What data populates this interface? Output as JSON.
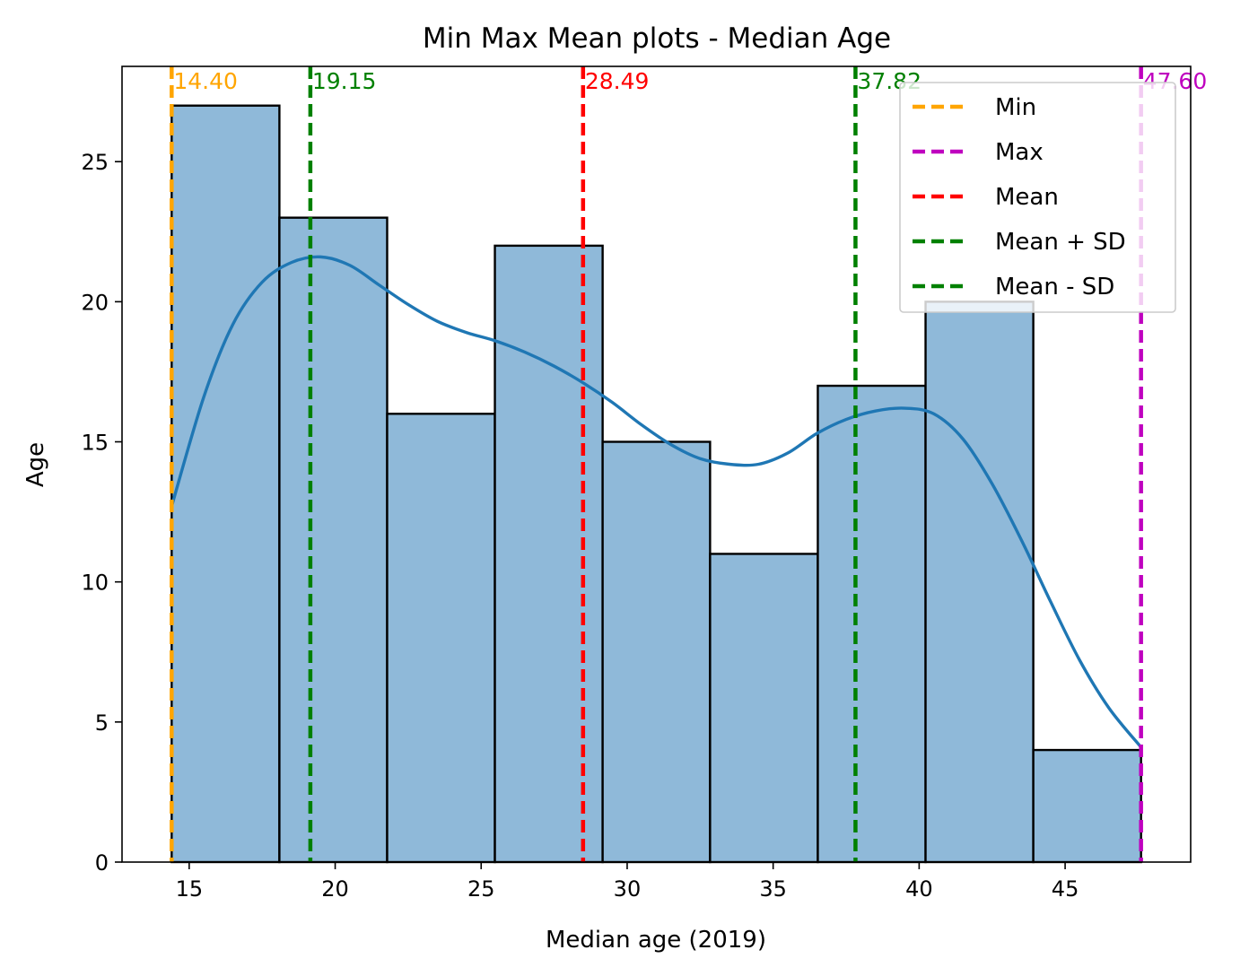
{
  "chart_data": {
    "type": "bar",
    "title": "Min Max Mean plots - Median Age",
    "xlabel": "Median age (2019)",
    "ylabel": "Age",
    "xlim": [
      12.7,
      49.3
    ],
    "ylim": [
      0,
      28.4
    ],
    "xticks": [
      15,
      20,
      25,
      30,
      35,
      40,
      45
    ],
    "yticks": [
      0,
      5,
      10,
      15,
      20,
      25
    ],
    "bins": [
      {
        "x0": 14.4,
        "x1": 18.09,
        "count": 27
      },
      {
        "x0": 18.09,
        "x1": 21.78,
        "count": 23
      },
      {
        "x0": 21.78,
        "x1": 25.47,
        "count": 16
      },
      {
        "x0": 25.47,
        "x1": 29.16,
        "count": 22
      },
      {
        "x0": 29.16,
        "x1": 32.84,
        "count": 15
      },
      {
        "x0": 32.84,
        "x1": 36.53,
        "count": 11
      },
      {
        "x0": 36.53,
        "x1": 40.22,
        "count": 17
      },
      {
        "x0": 40.22,
        "x1": 43.91,
        "count": 20
      },
      {
        "x0": 43.91,
        "x1": 47.6,
        "count": 4
      }
    ],
    "bar_color": "#8fb9d9",
    "kde": {
      "color": "#1f77b4",
      "x": [
        14.4,
        15.5,
        16.5,
        17.5,
        18.5,
        19.5,
        20.5,
        21.5,
        22.5,
        23.5,
        24.5,
        25.5,
        26.5,
        27.5,
        28.5,
        29.5,
        30.5,
        31.5,
        32.5,
        33.5,
        34.5,
        35.5,
        36.5,
        37.5,
        38.5,
        39.5,
        40.5,
        41.5,
        42.5,
        43.5,
        44.5,
        45.5,
        46.5,
        47.6
      ],
      "y": [
        12.7,
        16.6,
        19.2,
        20.7,
        21.4,
        21.6,
        21.3,
        20.6,
        19.9,
        19.3,
        18.9,
        18.6,
        18.2,
        17.7,
        17.1,
        16.4,
        15.6,
        14.9,
        14.4,
        14.2,
        14.2,
        14.6,
        15.3,
        15.8,
        16.1,
        16.2,
        16.0,
        15.1,
        13.5,
        11.5,
        9.3,
        7.2,
        5.5,
        4.1
      ]
    },
    "vlines": [
      {
        "label": "14.40",
        "value": 14.4,
        "color": "#ffa500",
        "legend": "Min"
      },
      {
        "label": "47.60",
        "value": 47.6,
        "color": "#bf00bf",
        "legend": "Max"
      },
      {
        "label": "28.49",
        "value": 28.49,
        "color": "#ff0000",
        "legend": "Mean"
      },
      {
        "label": "37.82",
        "value": 37.82,
        "color": "#008000",
        "legend": "Mean + SD"
      },
      {
        "label": "19.15",
        "value": 19.15,
        "color": "#008000",
        "legend": "Mean - SD"
      }
    ],
    "legend_position": "top-right"
  }
}
